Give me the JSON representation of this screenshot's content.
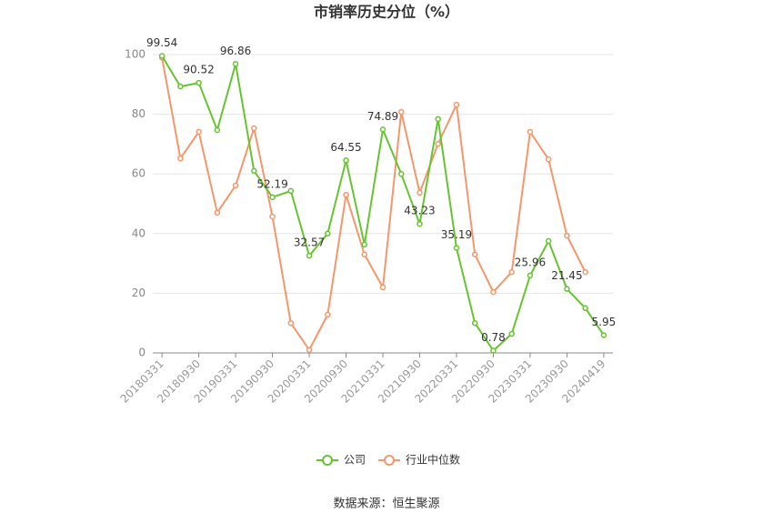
{
  "chart_data": {
    "type": "line",
    "title": "市销率历史分位（%）",
    "source": "数据来源：恒生聚源",
    "categories": [
      "20180331",
      null,
      "20180930",
      null,
      "20190331",
      null,
      "20190930",
      null,
      "20200331",
      null,
      "20200930",
      null,
      "20210331",
      null,
      "20210930",
      null,
      "20220331",
      null,
      "20220930",
      null,
      "20230331",
      null,
      "20230930",
      null,
      "20240419"
    ],
    "series": [
      {
        "name": "公司",
        "color": "#66c431",
        "values": [
          99.54,
          89.3,
          90.52,
          74.7,
          96.86,
          61,
          52.19,
          54.3,
          32.57,
          40,
          64.55,
          36.3,
          74.89,
          60,
          43.23,
          78.4,
          35.19,
          10,
          0.78,
          6.4,
          25.96,
          37.5,
          21.45,
          15,
          5.95
        ]
      },
      {
        "name": "行业中位数",
        "color": "#f5976c",
        "values": [
          99,
          65.2,
          74.1,
          47,
          56.1,
          75.3,
          45.7,
          10,
          1,
          12.8,
          53,
          33,
          22,
          80.8,
          53.7,
          70.1,
          83.2,
          33,
          20.4,
          27.1,
          74.1,
          64.9,
          39.3,
          27.1,
          null
        ]
      }
    ],
    "ylim": [
      0,
      100
    ],
    "yticks": [
      0,
      20,
      40,
      60,
      80,
      100
    ],
    "grid": true
  }
}
